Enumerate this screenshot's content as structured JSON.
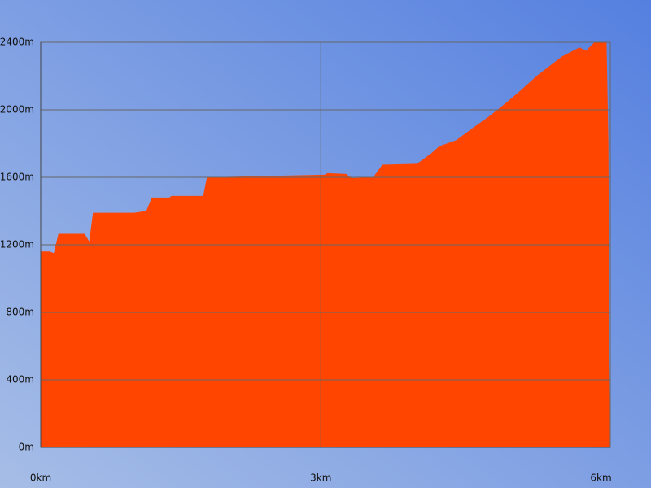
{
  "chart_data": {
    "type": "area",
    "color": "#ff4500",
    "grid": true,
    "x": [
      0,
      0.1,
      0.14,
      0.19,
      0.47,
      0.52,
      0.56,
      1.0,
      1.13,
      1.19,
      1.38,
      1.4,
      1.74,
      1.78,
      3.05,
      3.07,
      3.27,
      3.33,
      3.56,
      3.66,
      4.03,
      4.19,
      4.27,
      4.45,
      4.62,
      4.8,
      4.97,
      5.15,
      5.32,
      5.58,
      5.77,
      5.84,
      5.93,
      6.06,
      6.08,
      6.09
    ],
    "values": [
      1160,
      1160,
      1150,
      1265,
      1265,
      1220,
      1390,
      1390,
      1400,
      1480,
      1480,
      1490,
      1490,
      1600,
      1615,
      1625,
      1620,
      1595,
      1600,
      1675,
      1680,
      1745,
      1785,
      1820,
      1890,
      1960,
      2035,
      2120,
      2205,
      2315,
      2370,
      2350,
      2400,
      2400,
      1810,
      600
    ],
    "xlim": [
      0,
      6.1
    ],
    "ylim": [
      0,
      2400
    ],
    "xticks": [
      {
        "value": 0,
        "label": "0km"
      },
      {
        "value": 3,
        "label": "3km"
      },
      {
        "value": 6,
        "label": "6km"
      }
    ],
    "yticks": [
      {
        "value": 0,
        "label": "0m"
      },
      {
        "value": 400,
        "label": "400m"
      },
      {
        "value": 800,
        "label": "800m"
      },
      {
        "value": 1200,
        "label": "1200m"
      },
      {
        "value": 1600,
        "label": "1600m"
      },
      {
        "value": 2000,
        "label": "2000m"
      },
      {
        "value": 2400,
        "label": "2400m"
      }
    ]
  }
}
